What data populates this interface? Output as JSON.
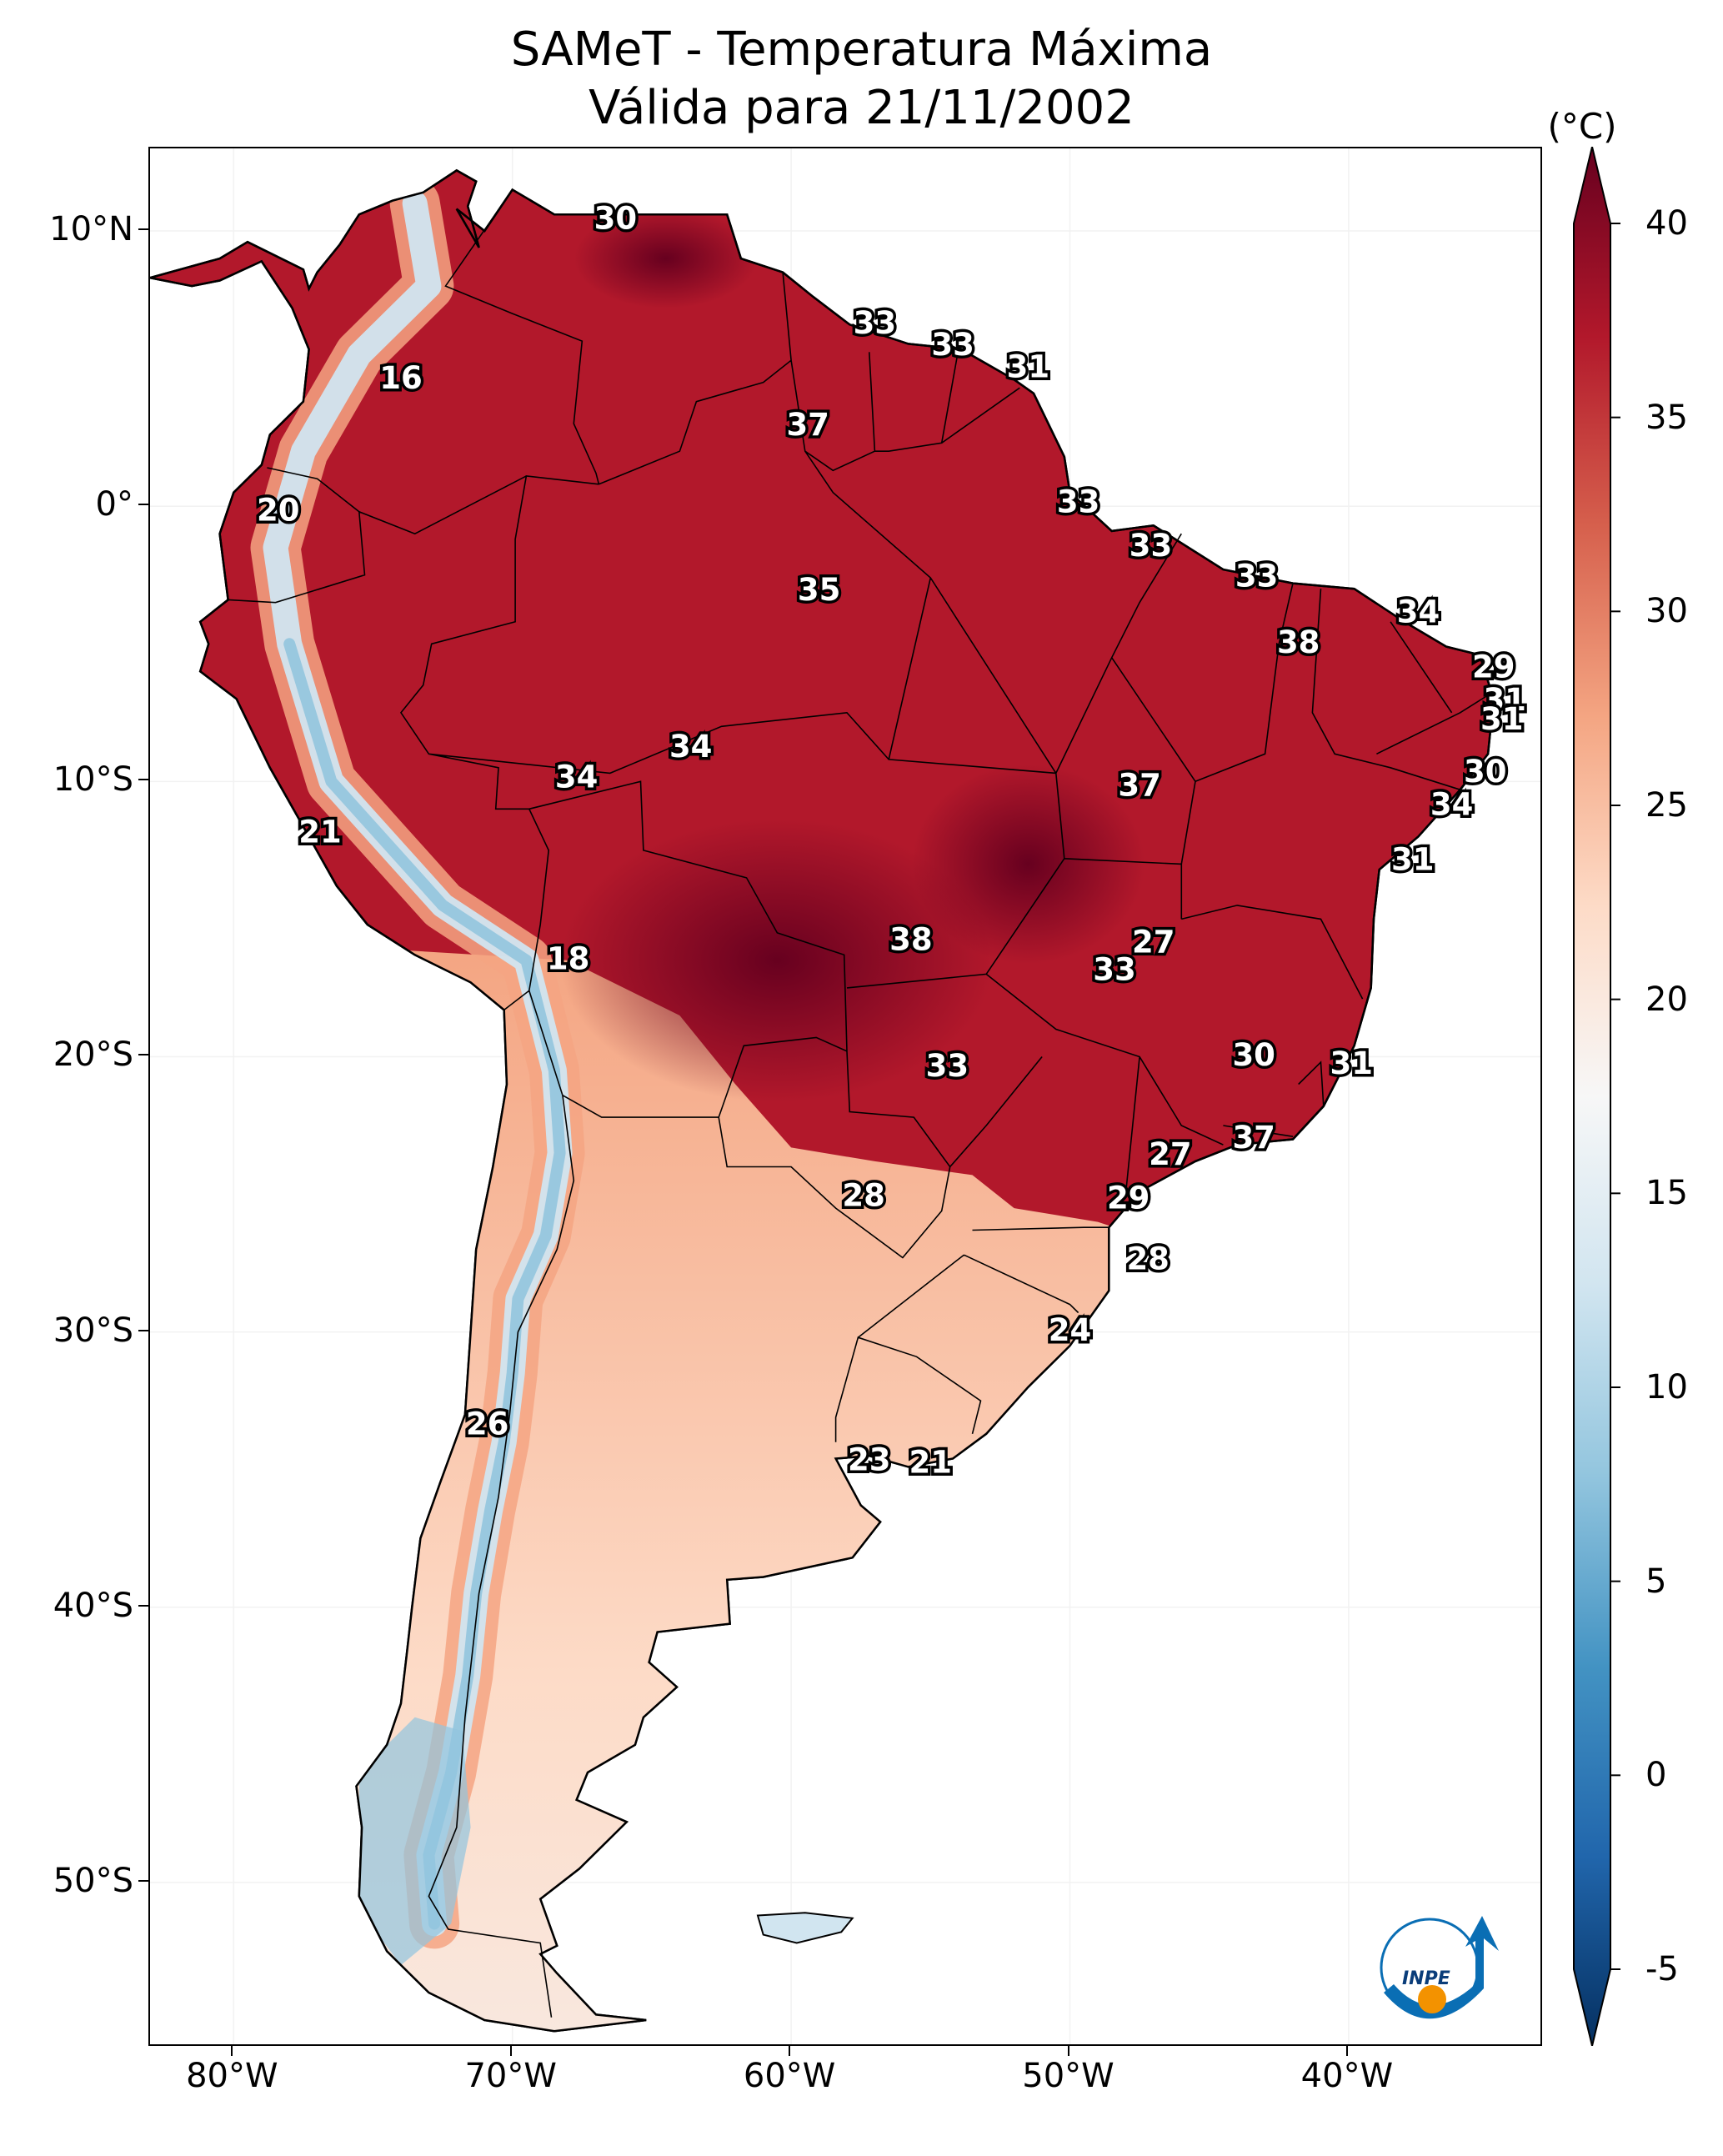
{
  "title": {
    "line1": "SAMeT - Temperatura Máxima",
    "line2": "Válida para 21/11/2002"
  },
  "axes": {
    "lon_range": [
      -83,
      -33
    ],
    "lat_range": [
      -56,
      13
    ],
    "lat_ticks": [
      {
        "value": 10,
        "label": "10°N"
      },
      {
        "value": 0,
        "label": "0°"
      },
      {
        "value": -10,
        "label": "10°S"
      },
      {
        "value": -20,
        "label": "20°S"
      },
      {
        "value": -30,
        "label": "30°S"
      },
      {
        "value": -40,
        "label": "40°S"
      },
      {
        "value": -50,
        "label": "50°S"
      }
    ],
    "lon_ticks": [
      {
        "value": -80,
        "label": "80°W"
      },
      {
        "value": -70,
        "label": "70°W"
      },
      {
        "value": -60,
        "label": "60°W"
      },
      {
        "value": -50,
        "label": "50°W"
      },
      {
        "value": -40,
        "label": "40°W"
      }
    ]
  },
  "colorbar": {
    "unit": "(°C)",
    "range": [
      -5,
      40
    ],
    "ticks": [
      {
        "value": 40,
        "label": "40"
      },
      {
        "value": 35,
        "label": "35"
      },
      {
        "value": 30,
        "label": "30"
      },
      {
        "value": 25,
        "label": "25"
      },
      {
        "value": 20,
        "label": "20"
      },
      {
        "value": 15,
        "label": "15"
      },
      {
        "value": 10,
        "label": "10"
      },
      {
        "value": 5,
        "label": "5"
      },
      {
        "value": 0,
        "label": "0"
      },
      {
        "value": -5,
        "label": "-5"
      }
    ],
    "colors": [
      "#053061",
      "#2166ac",
      "#4393c3",
      "#92c5de",
      "#d1e5f0",
      "#f7f7f7",
      "#fddbc7",
      "#f4a582",
      "#d6604d",
      "#b2182b",
      "#67001f"
    ]
  },
  "chart_data": {
    "type": "map",
    "variable": "Temperatura Máxima",
    "units": "°C",
    "temperature_labels": [
      {
        "label": "30",
        "lon": -66.3,
        "lat": 10.4
      },
      {
        "label": "33",
        "lon": -57.0,
        "lat": 6.6
      },
      {
        "label": "33",
        "lon": -54.2,
        "lat": 5.8
      },
      {
        "label": "31",
        "lon": -51.5,
        "lat": 5.0
      },
      {
        "label": "16",
        "lon": -74.0,
        "lat": 4.6
      },
      {
        "label": "37",
        "lon": -59.4,
        "lat": 2.9
      },
      {
        "label": "20",
        "lon": -78.4,
        "lat": -0.2
      },
      {
        "label": "33",
        "lon": -49.7,
        "lat": 0.1
      },
      {
        "label": "33",
        "lon": -47.1,
        "lat": -1.5
      },
      {
        "label": "33",
        "lon": -43.3,
        "lat": -2.6
      },
      {
        "label": "35",
        "lon": -59.0,
        "lat": -3.1
      },
      {
        "label": "34",
        "lon": -37.5,
        "lat": -3.9
      },
      {
        "label": "38",
        "lon": -41.8,
        "lat": -5.0
      },
      {
        "label": "29",
        "lon": -34.8,
        "lat": -5.9
      },
      {
        "label": "31",
        "lon": -34.4,
        "lat": -7.1
      },
      {
        "label": "31",
        "lon": -34.5,
        "lat": -7.8
      },
      {
        "label": "34",
        "lon": -63.6,
        "lat": -8.8
      },
      {
        "label": "34",
        "lon": -67.7,
        "lat": -9.9
      },
      {
        "label": "37",
        "lon": -47.5,
        "lat": -10.2
      },
      {
        "label": "30",
        "lon": -35.1,
        "lat": -9.7
      },
      {
        "label": "21",
        "lon": -76.9,
        "lat": -11.9
      },
      {
        "label": "34",
        "lon": -36.3,
        "lat": -10.9
      },
      {
        "label": "31",
        "lon": -37.7,
        "lat": -12.9
      },
      {
        "label": "38",
        "lon": -55.7,
        "lat": -15.8
      },
      {
        "label": "27",
        "lon": -47.0,
        "lat": -15.9
      },
      {
        "label": "33",
        "lon": -48.4,
        "lat": -16.9
      },
      {
        "label": "18",
        "lon": -68.0,
        "lat": -16.5
      },
      {
        "label": "30",
        "lon": -43.4,
        "lat": -20.0
      },
      {
        "label": "31",
        "lon": -39.9,
        "lat": -20.3
      },
      {
        "label": "33",
        "lon": -54.4,
        "lat": -20.4
      },
      {
        "label": "37",
        "lon": -43.4,
        "lat": -23.0
      },
      {
        "label": "27",
        "lon": -46.4,
        "lat": -23.6
      },
      {
        "label": "28",
        "lon": -57.4,
        "lat": -25.1
      },
      {
        "label": "29",
        "lon": -47.9,
        "lat": -25.2
      },
      {
        "label": "28",
        "lon": -47.2,
        "lat": -27.4
      },
      {
        "label": "24",
        "lon": -50.0,
        "lat": -30.0
      },
      {
        "label": "26",
        "lon": -70.9,
        "lat": -33.4
      },
      {
        "label": "23",
        "lon": -57.2,
        "lat": -34.7
      },
      {
        "label": "21",
        "lon": -55.0,
        "lat": -34.8
      }
    ]
  }
}
